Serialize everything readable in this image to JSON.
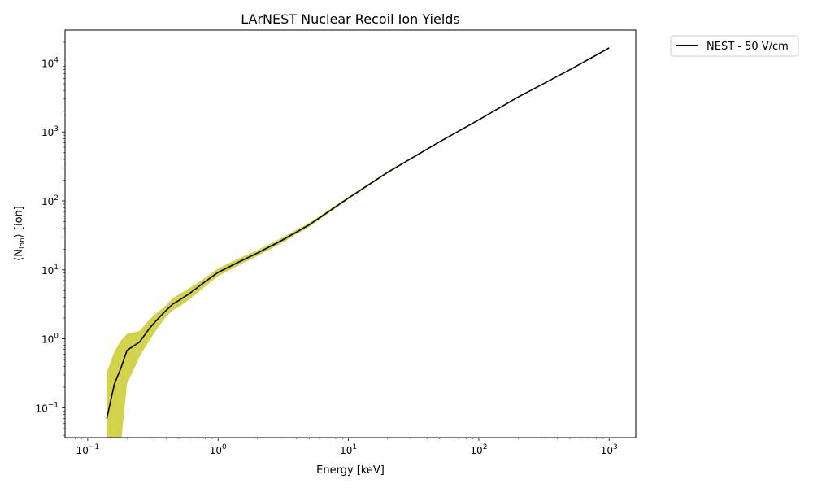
{
  "chart_data": {
    "type": "line",
    "title": "LArNEST Nuclear Recoil Ion Yields",
    "xlabel": "Energy [keV]",
    "ylabel": "⟨N_ion⟩ [ion]",
    "ylabel_main": "⟨N",
    "ylabel_sub": "ion",
    "ylabel_tail": "⟩ [ion]",
    "x_scale": "log",
    "y_scale": "log",
    "xlim": [
      0.067,
      1600
    ],
    "ylim": [
      0.037,
      30000
    ],
    "grid": false,
    "legend_position": "outside-top-right",
    "x_ticks": [
      {
        "value": 0.1,
        "base": "10",
        "exp": "−1"
      },
      {
        "value": 1,
        "base": "10",
        "exp": "0"
      },
      {
        "value": 10,
        "base": "10",
        "exp": "1"
      },
      {
        "value": 100,
        "base": "10",
        "exp": "2"
      },
      {
        "value": 1000,
        "base": "10",
        "exp": "3"
      }
    ],
    "y_ticks": [
      {
        "value": 0.1,
        "base": "10",
        "exp": "−1"
      },
      {
        "value": 1,
        "base": "10",
        "exp": "0"
      },
      {
        "value": 10,
        "base": "10",
        "exp": "1"
      },
      {
        "value": 100,
        "base": "10",
        "exp": "2"
      },
      {
        "value": 1000,
        "base": "10",
        "exp": "3"
      },
      {
        "value": 10000,
        "base": "10",
        "exp": "4"
      }
    ],
    "series": [
      {
        "name": "NEST - 50 V/cm",
        "color": "#000000",
        "band_color": "#bfbf00",
        "x": [
          0.14,
          0.16,
          0.18,
          0.2,
          0.25,
          0.3,
          0.35,
          0.4,
          0.45,
          0.5,
          0.6,
          0.7,
          0.8,
          1,
          1.5,
          2,
          3,
          5,
          10,
          20,
          50,
          100,
          200,
          500,
          1000
        ],
        "y": [
          0.07,
          0.22,
          0.38,
          0.68,
          0.9,
          1.45,
          2.0,
          2.6,
          3.2,
          3.6,
          4.5,
          5.6,
          6.8,
          9.2,
          13.5,
          17.5,
          26,
          45,
          110,
          260,
          720,
          1500,
          3200,
          8000,
          16500
        ],
        "y_upper": [
          0.33,
          0.65,
          0.95,
          1.18,
          1.3,
          1.95,
          2.5,
          3.1,
          3.9,
          4.4,
          5.4,
          6.5,
          7.8,
          10.5,
          15.2,
          19.3,
          28.5,
          48,
          115,
          268,
          735,
          1520,
          3240,
          8060,
          16600
        ],
        "y_lower": [
          0.03,
          0.03,
          0.03,
          0.22,
          0.55,
          0.98,
          1.5,
          2.1,
          2.6,
          2.9,
          3.7,
          4.7,
          5.8,
          8.1,
          12.1,
          15.9,
          23.8,
          42,
          106,
          252,
          705,
          1480,
          3160,
          7940,
          16400
        ]
      }
    ]
  }
}
